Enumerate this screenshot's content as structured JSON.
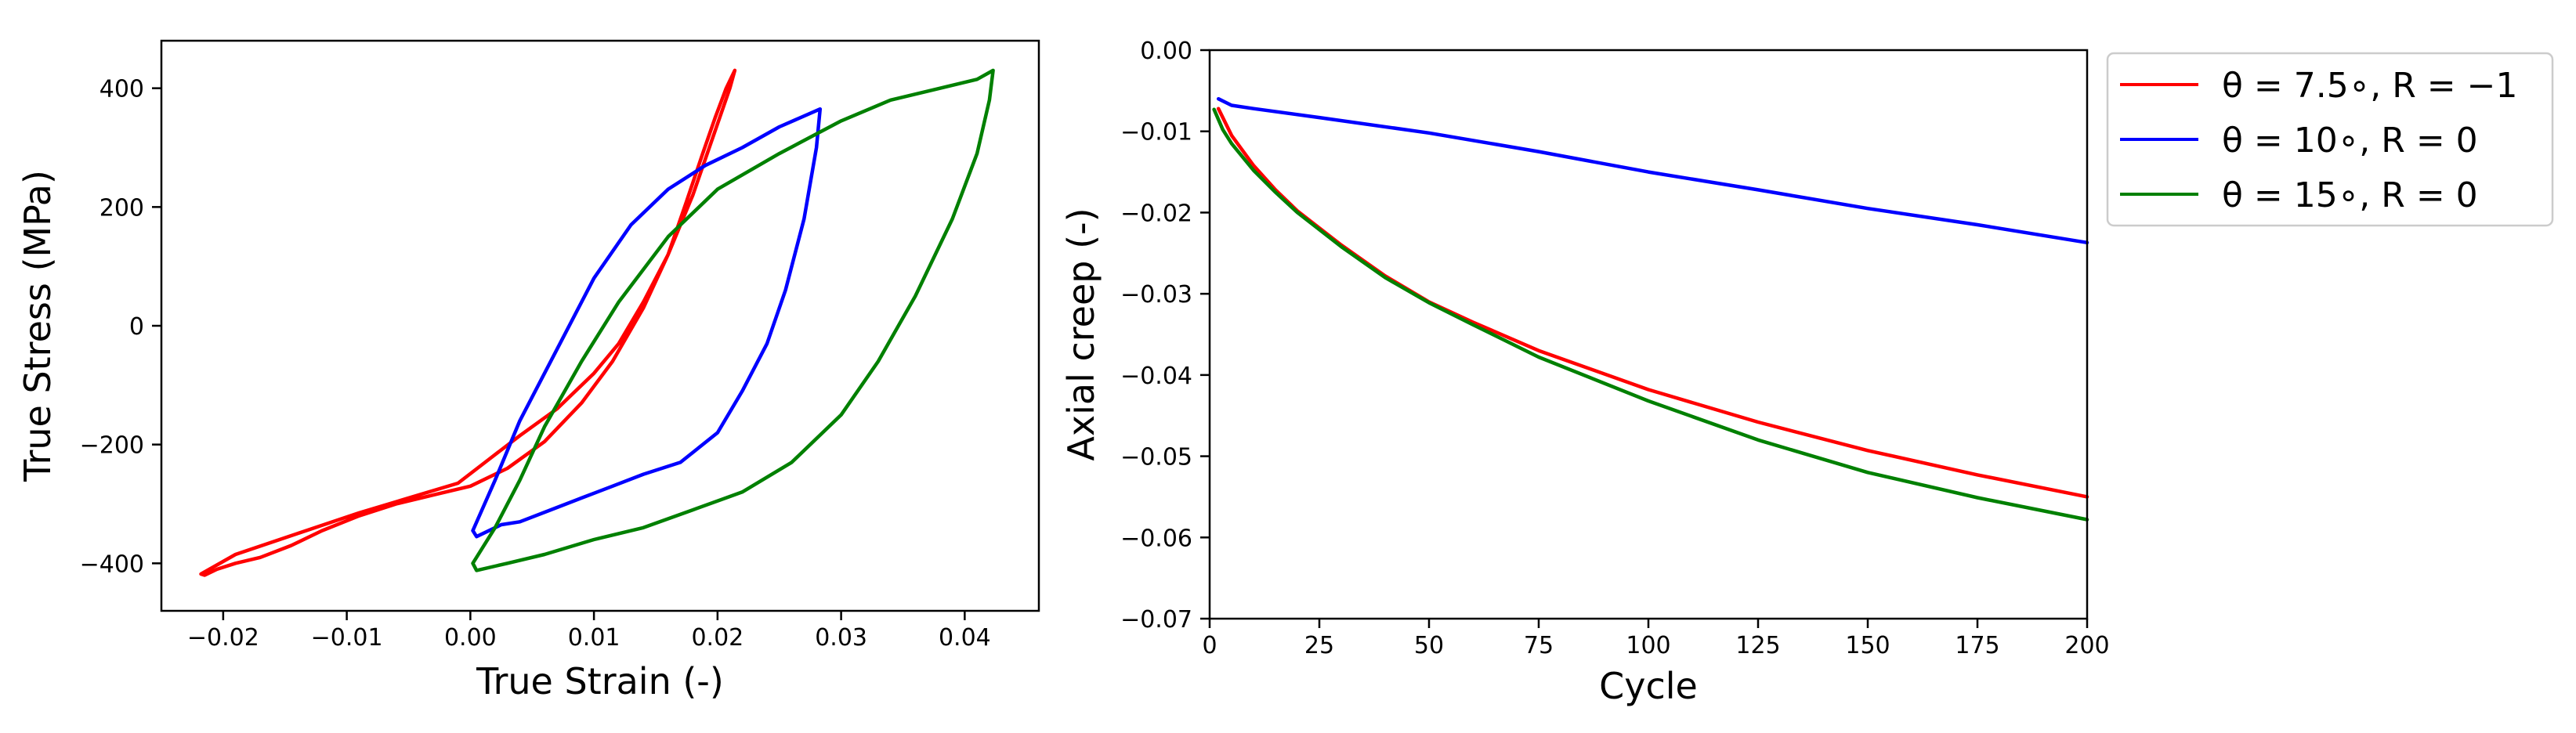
{
  "figure": {
    "description_free": true
  },
  "colors": {
    "red": "#ff0000",
    "blue": "#0000ff",
    "green": "#008000",
    "axis": "#000000"
  },
  "chart_data": [
    {
      "type": "line",
      "xlabel": "True Strain (-)",
      "ylabel": "True Stress (MPa)",
      "xlim": [
        -0.025,
        0.046
      ],
      "ylim": [
        -480,
        480
      ],
      "xticks": [
        -0.02,
        -0.01,
        0.0,
        0.01,
        0.02,
        0.03,
        0.04
      ],
      "xtick_labels": [
        "−0.02",
        "−0.01",
        "0.00",
        "0.01",
        "0.02",
        "0.03",
        "0.04"
      ],
      "yticks": [
        -400,
        -200,
        0,
        200,
        400
      ],
      "ytick_labels": [
        "−400",
        "−200",
        "0",
        "200",
        "400"
      ],
      "series": [
        {
          "name": "red-loop",
          "color": "#ff0000",
          "x": [
            0.0214,
            0.021,
            0.0195,
            0.018,
            0.016,
            0.014,
            0.012,
            0.01,
            0.007,
            0.004,
            0.0015,
            -0.001,
            -0.005,
            -0.009,
            -0.014,
            -0.019,
            -0.0218,
            -0.0215,
            -0.0205,
            -0.019,
            -0.017,
            -0.0145,
            -0.012,
            -0.009,
            -0.006,
            -0.003,
            0.0,
            0.003,
            0.006,
            0.009,
            0.0115,
            0.014,
            0.016,
            0.0175,
            0.0188,
            0.0198,
            0.0207,
            0.0214
          ],
          "y": [
            430,
            400,
            310,
            220,
            120,
            40,
            -30,
            -80,
            -140,
            -185,
            -225,
            -265,
            -290,
            -315,
            -350,
            -385,
            -418,
            -420,
            -410,
            -400,
            -390,
            -370,
            -345,
            -320,
            -300,
            -285,
            -270,
            -240,
            -195,
            -130,
            -60,
            30,
            120,
            210,
            290,
            350,
            400,
            430
          ]
        },
        {
          "name": "blue-loop",
          "color": "#0000ff",
          "x": [
            0.0002,
            0.002,
            0.004,
            0.007,
            0.01,
            0.013,
            0.016,
            0.019,
            0.022,
            0.025,
            0.0283,
            0.028,
            0.027,
            0.0255,
            0.024,
            0.022,
            0.02,
            0.017,
            0.014,
            0.0115,
            0.009,
            0.0065,
            0.004,
            0.0025,
            0.0005,
            0.0002
          ],
          "y": [
            -345,
            -260,
            -160,
            -40,
            80,
            170,
            230,
            270,
            300,
            335,
            365,
            300,
            180,
            60,
            -30,
            -110,
            -180,
            -230,
            -250,
            -270,
            -290,
            -310,
            -330,
            -335,
            -355,
            -345
          ]
        },
        {
          "name": "green-loop",
          "color": "#008000",
          "x": [
            0.0002,
            0.002,
            0.004,
            0.006,
            0.009,
            0.012,
            0.016,
            0.02,
            0.025,
            0.03,
            0.034,
            0.038,
            0.041,
            0.0423,
            0.042,
            0.041,
            0.039,
            0.036,
            0.033,
            0.03,
            0.026,
            0.022,
            0.018,
            0.014,
            0.01,
            0.006,
            0.003,
            0.0005,
            0.0002
          ],
          "y": [
            -400,
            -340,
            -260,
            -170,
            -60,
            40,
            150,
            230,
            290,
            345,
            380,
            400,
            415,
            430,
            380,
            290,
            180,
            50,
            -60,
            -150,
            -230,
            -280,
            -310,
            -340,
            -360,
            -385,
            -400,
            -412,
            -400
          ]
        }
      ]
    },
    {
      "type": "line",
      "xlabel": "Cycle",
      "ylabel": "Axial creep (-)",
      "xlim": [
        0,
        200
      ],
      "ylim": [
        -0.07,
        0.0
      ],
      "xticks": [
        0,
        25,
        50,
        75,
        100,
        125,
        150,
        175,
        200
      ],
      "xtick_labels": [
        "0",
        "25",
        "50",
        "75",
        "100",
        "125",
        "150",
        "175",
        "200"
      ],
      "yticks": [
        0.0,
        -0.01,
        -0.02,
        -0.03,
        -0.04,
        -0.05,
        -0.06,
        -0.07
      ],
      "ytick_labels": [
        "0.00",
        "−0.01",
        "−0.02",
        "−0.03",
        "−0.04",
        "−0.05",
        "−0.06",
        "−0.07"
      ],
      "legend": {
        "placement": "outside-right-top",
        "entries": [
          {
            "math": "θ = 7.5∘, R = −1",
            "color": "#ff0000"
          },
          {
            "math": "θ = 10∘, R = 0",
            "color": "#0000ff"
          },
          {
            "math": "θ = 15∘, R = 0",
            "color": "#008000"
          }
        ]
      },
      "series": [
        {
          "name": "θ = 7.5∘, R = −1",
          "color": "#ff0000",
          "x": [
            2,
            5,
            10,
            15,
            20,
            30,
            40,
            50,
            60,
            75,
            100,
            125,
            150,
            175,
            200
          ],
          "y": [
            -0.0072,
            -0.0105,
            -0.0142,
            -0.0172,
            -0.0198,
            -0.024,
            -0.0278,
            -0.031,
            -0.0335,
            -0.037,
            -0.0418,
            -0.0458,
            -0.0493,
            -0.0523,
            -0.055
          ]
        },
        {
          "name": "θ = 10∘, R = 0",
          "color": "#0000ff",
          "x": [
            2,
            5,
            10,
            25,
            50,
            75,
            100,
            125,
            150,
            175,
            200
          ],
          "y": [
            -0.006,
            -0.0068,
            -0.0072,
            -0.0083,
            -0.0102,
            -0.0125,
            -0.015,
            -0.0172,
            -0.0195,
            -0.0215,
            -0.0237
          ]
        },
        {
          "name": "θ = 15∘, R = 0",
          "color": "#008000",
          "x": [
            1,
            3,
            5,
            10,
            15,
            20,
            30,
            40,
            50,
            60,
            75,
            100,
            125,
            150,
            175,
            200
          ],
          "y": [
            -0.0073,
            -0.0098,
            -0.0115,
            -0.0148,
            -0.0175,
            -0.02,
            -0.0242,
            -0.028,
            -0.0311,
            -0.0338,
            -0.0378,
            -0.0432,
            -0.048,
            -0.052,
            -0.0551,
            -0.0578
          ]
        }
      ]
    }
  ]
}
